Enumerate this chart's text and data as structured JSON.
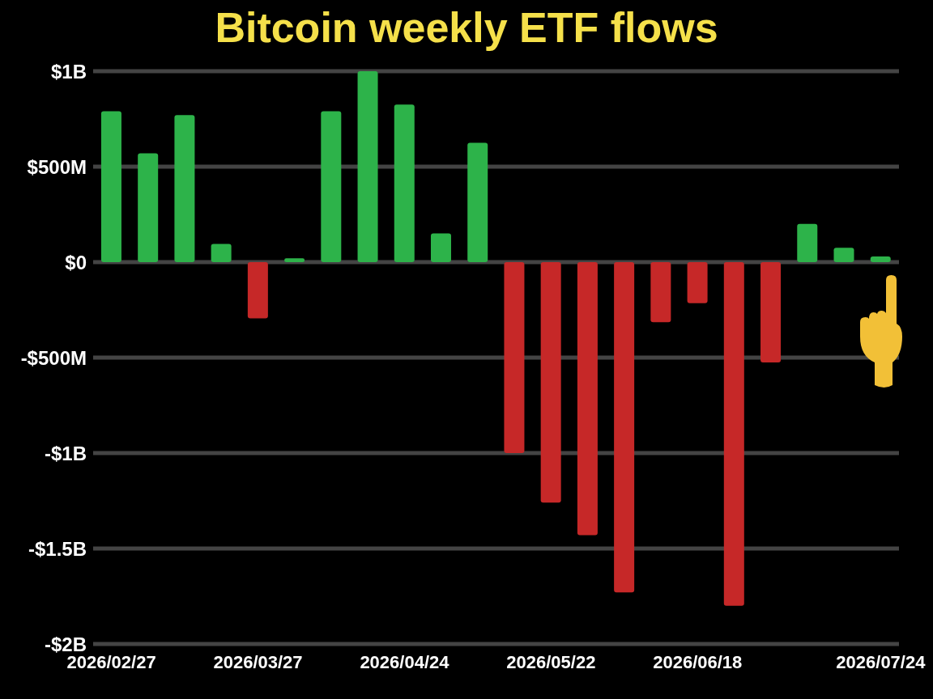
{
  "chart_data": {
    "type": "bar",
    "title": "Bitcoin weekly ETF flows",
    "categories": [
      "2026/02/27",
      null,
      null,
      null,
      "2026/03/27",
      null,
      null,
      null,
      "2026/04/24",
      null,
      null,
      null,
      "2026/05/22",
      null,
      null,
      null,
      "2026/06/18",
      null,
      null,
      null,
      null,
      "2026/07/24"
    ],
    "values": [
      790000000,
      570000000,
      770000000,
      95000000,
      -295000000,
      20000000,
      790000000,
      1000000000,
      825000000,
      150000000,
      625000000,
      -1000000000,
      -1260000000,
      -1430000000,
      -1730000000,
      -315000000,
      -215000000,
      -1800000000,
      -525000000,
      200000000,
      75000000,
      30000000
    ],
    "colors": [
      "#2db34a",
      "#2db34a",
      "#2db34a",
      "#2db34a",
      "#c62828",
      "#2db34a",
      "#2db34a",
      "#2db34a",
      "#2db34a",
      "#2db34a",
      "#2db34a",
      "#c62828",
      "#c62828",
      "#c62828",
      "#c62828",
      "#c62828",
      "#c62828",
      "#c62828",
      "#c62828",
      "#2db34a",
      "#2db34a",
      "#2db34a"
    ],
    "ylim": [
      -2000000000,
      1000000000
    ],
    "yticks": [
      {
        "value": -2000000000,
        "label": "-$2B"
      },
      {
        "value": -1500000000,
        "label": "-$1.5B"
      },
      {
        "value": -1000000000,
        "label": "-$1B"
      },
      {
        "value": -500000000,
        "label": "-$500M"
      },
      {
        "value": 0,
        "label": "$0"
      },
      {
        "value": 500000000,
        "label": "$500M"
      },
      {
        "value": 1000000000,
        "label": "$1B"
      }
    ],
    "grid": "y"
  }
}
